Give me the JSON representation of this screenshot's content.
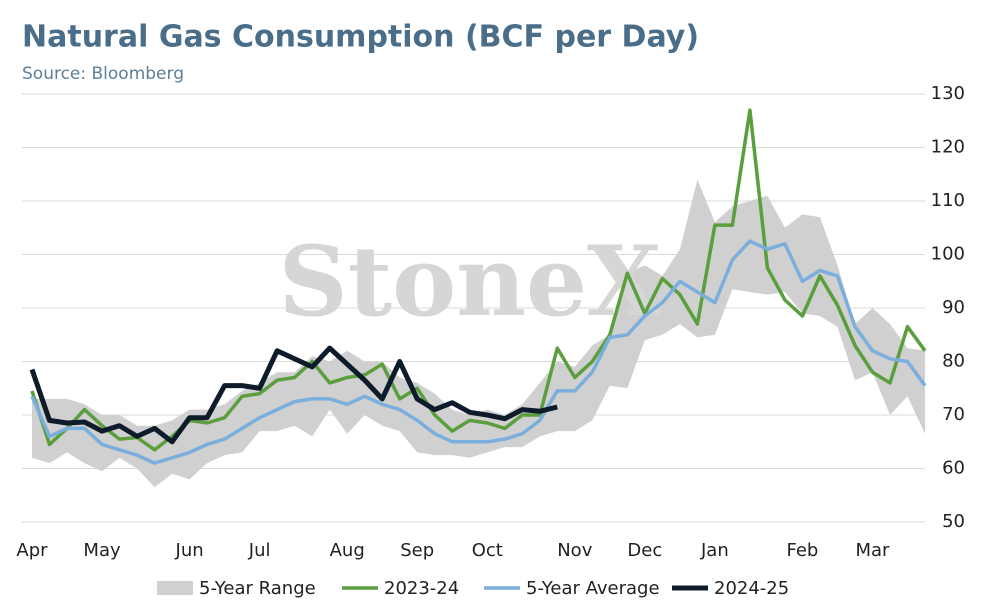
{
  "chart_data": {
    "type": "line",
    "title": "Natural Gas Consumption (BCF per Day)",
    "subtitle": "Source: Bloomberg",
    "watermark": "StoneX",
    "categories": [
      "Apr",
      null,
      null,
      null,
      "May",
      null,
      null,
      null,
      null,
      "Jun",
      null,
      null,
      null,
      "Jul",
      null,
      null,
      null,
      null,
      "Aug",
      null,
      null,
      null,
      "Sep",
      null,
      null,
      null,
      "Oct",
      null,
      null,
      null,
      null,
      "Nov",
      null,
      null,
      null,
      "Dec",
      null,
      null,
      null,
      "Jan",
      null,
      null,
      null,
      null,
      "Feb",
      null,
      null,
      null,
      "Mar",
      null,
      null,
      null
    ],
    "ylim": [
      50,
      130
    ],
    "yticks": [
      50,
      60,
      70,
      80,
      90,
      100,
      110,
      120,
      130
    ],
    "grid": true,
    "legend": "bottom",
    "series": [
      {
        "name": "5-Year Range",
        "color": "#d0d0d0",
        "low": [
          62,
          61,
          63,
          61,
          59.5,
          62,
          60,
          56.5,
          59,
          58,
          61,
          62.5,
          63,
          67,
          67,
          68,
          66,
          71,
          66.5,
          70,
          68,
          67,
          63,
          62.5,
          62.5,
          62,
          63,
          64,
          64,
          66,
          67,
          67,
          69,
          75.5,
          75,
          84,
          85,
          87,
          84.5,
          85,
          93.5,
          93,
          92.5,
          93,
          89,
          88.5,
          86.5,
          76.5,
          78,
          70,
          73.5,
          66.5
        ],
        "high": [
          73,
          73,
          73,
          72,
          70,
          70,
          68,
          68,
          69,
          71,
          71,
          72,
          74.5,
          76,
          78,
          78,
          81,
          80,
          82,
          80,
          80,
          77,
          76,
          74,
          71,
          70,
          71,
          70,
          72,
          76,
          80,
          79,
          83,
          85,
          96.5,
          98,
          96,
          101,
          114,
          106,
          109,
          110,
          111,
          105,
          107.5,
          107,
          98,
          87,
          90,
          87,
          82.5,
          82
        ]
      },
      {
        "name": "2023-24",
        "color": "#5a9e3e",
        "values": [
          74.5,
          64.5,
          67.5,
          71,
          68,
          65.5,
          65.8,
          63.5,
          66,
          69,
          68.5,
          69.5,
          73.5,
          74,
          76.5,
          77,
          80,
          76,
          77,
          77.5,
          79.5,
          73,
          75,
          70,
          67,
          69,
          68.5,
          67.5,
          70,
          70,
          82.5,
          77,
          80,
          85,
          96.5,
          89,
          95.5,
          92.5,
          87,
          105.5,
          105.5,
          127,
          97.5,
          91.5,
          88.5,
          96,
          90.5,
          83,
          78,
          76,
          86.5,
          82
        ]
      },
      {
        "name": "5-Year Average",
        "color": "#7aaedc",
        "values": [
          73.5,
          66,
          67.5,
          67.5,
          64.5,
          63.5,
          62.5,
          61,
          62,
          63,
          64.5,
          65.5,
          67.5,
          69.5,
          71,
          72.5,
          73,
          73,
          72,
          73.5,
          72,
          71,
          69,
          66.5,
          65,
          65,
          65,
          65.5,
          66.5,
          69,
          74.5,
          74.5,
          78,
          84.5,
          85,
          88.5,
          91,
          95,
          93,
          91,
          99,
          102.5,
          101,
          102,
          95,
          97,
          96,
          86.5,
          82,
          80.5,
          80,
          75.5
        ]
      },
      {
        "name": "2024-25",
        "color": "#0d1b2a",
        "values": [
          78.5,
          69,
          68.5,
          68.7,
          67,
          68,
          66,
          67.5,
          65,
          69.5,
          69.5,
          75.5,
          75.5,
          75,
          82,
          80.5,
          79,
          82.5,
          79.5,
          76.5,
          73,
          80,
          73,
          71,
          72.3,
          70.5,
          70,
          69.3,
          71,
          70.7,
          71.5,
          null,
          null,
          null,
          null,
          null,
          null,
          null,
          null,
          null,
          null,
          null,
          null,
          null,
          null,
          null,
          null,
          null,
          null,
          null,
          null,
          null
        ]
      }
    ]
  }
}
